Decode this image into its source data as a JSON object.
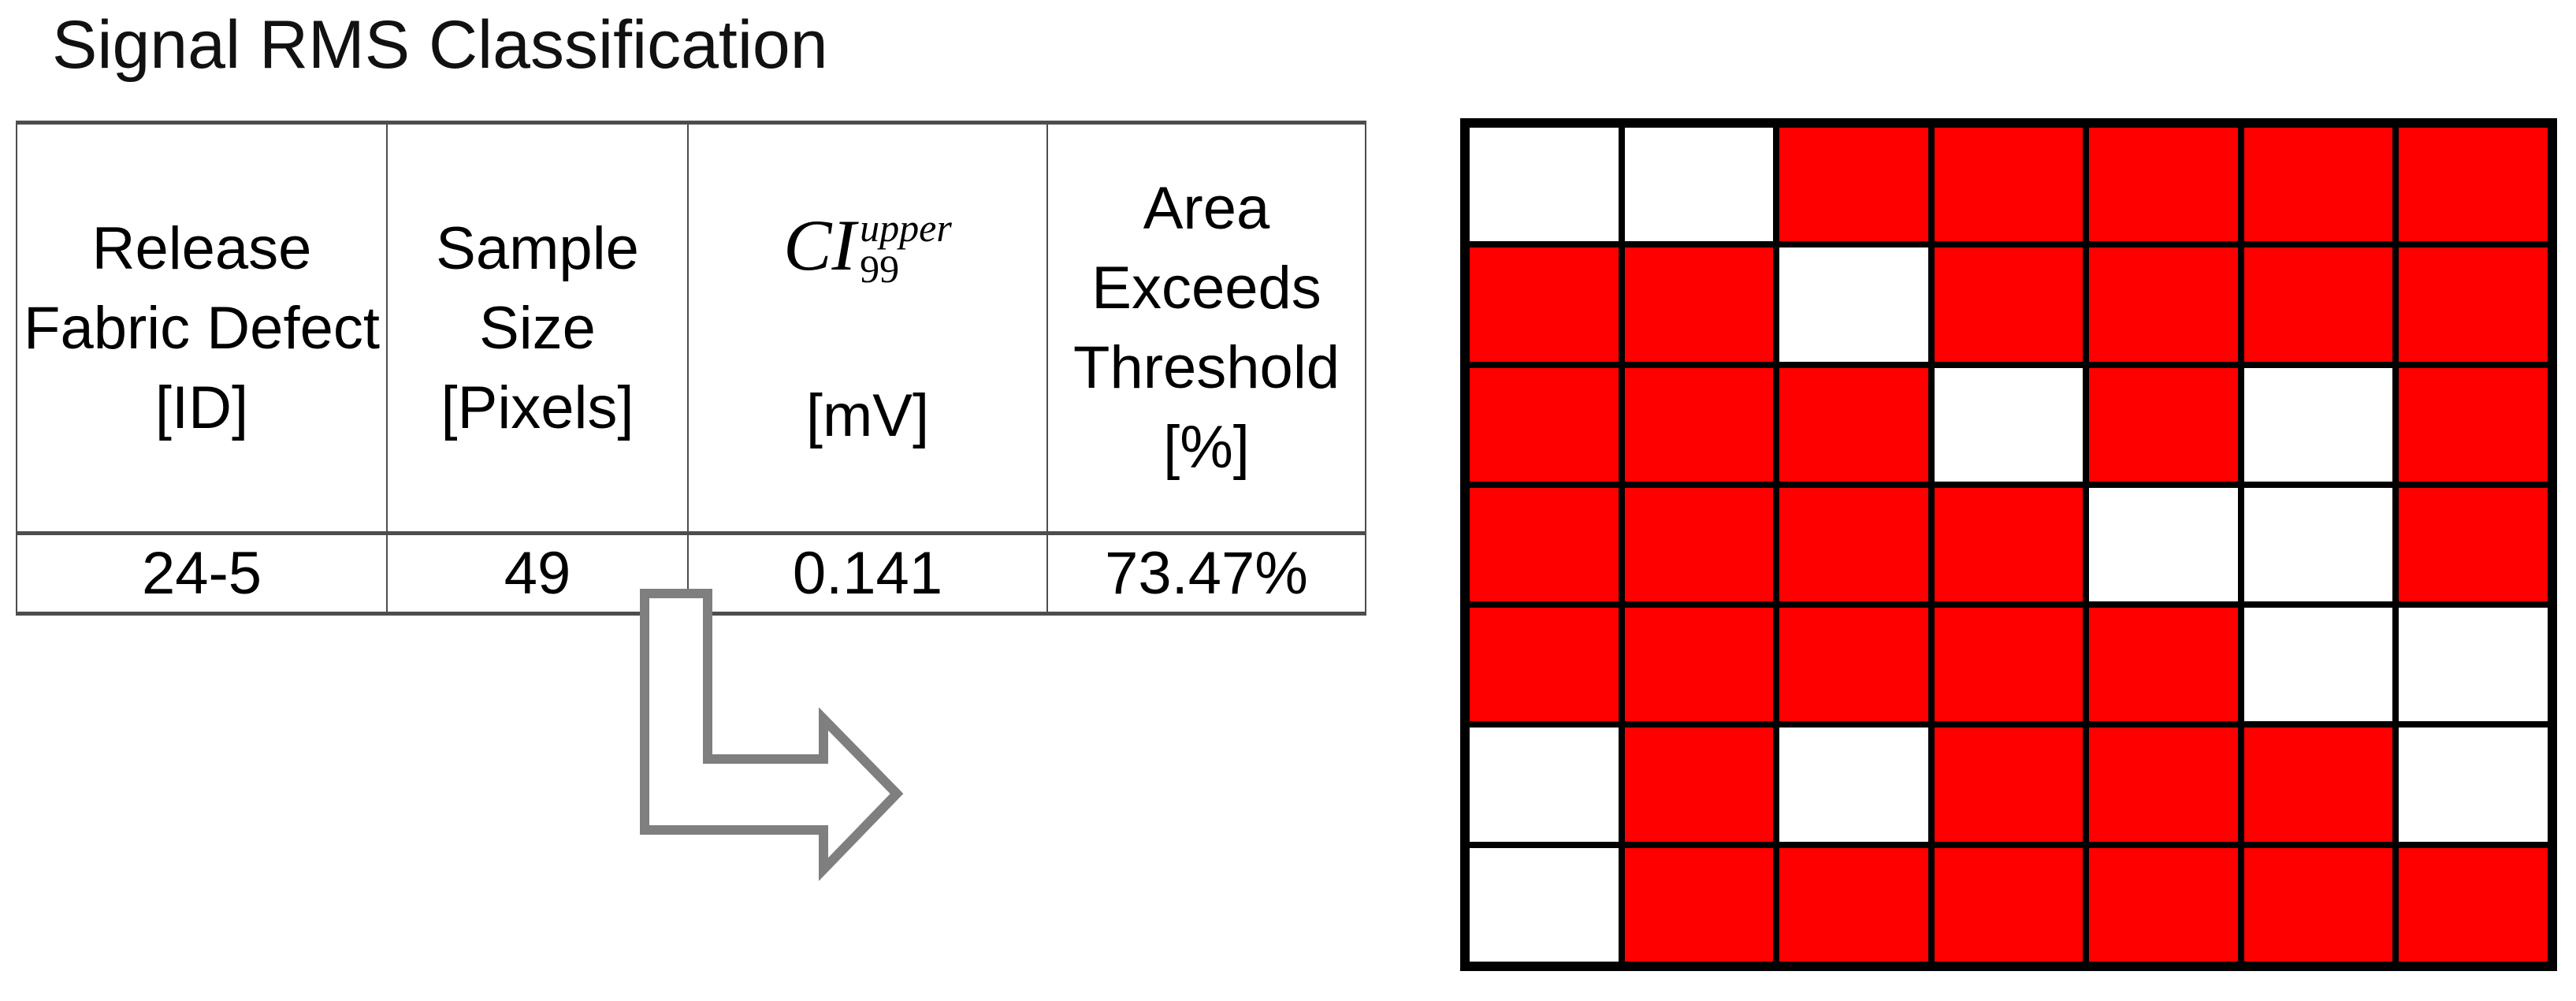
{
  "title": "Signal RMS Classification",
  "table": {
    "headers": {
      "col1": "Release\nFabric Defect\n[ID]",
      "col2": "Sample\nSize\n[Pixels]",
      "col3_math_base": "CI",
      "col3_math_sup": "upper",
      "col3_math_sub": "99",
      "col3_unit": "[mV]",
      "col4": "Area\nExceeds\nThreshold\n[%]"
    },
    "row": {
      "defect_id": "24-5",
      "sample_size": "49",
      "ci_upper_mv": "0.141",
      "area_exceeds_pct": "73.47%"
    }
  },
  "arrow": {
    "type": "bent-arrow-down-then-right",
    "stroke_color": "#7F7F7F",
    "fill_color": "#FFFFFF"
  },
  "grid": {
    "rows": 7,
    "cols": 7,
    "red_color": "#FF0000",
    "white_color": "#FFFFFF",
    "line_color": "#000000",
    "red_count": 36,
    "white_count": 13,
    "cell_states": [
      [
        0,
        0,
        1,
        1,
        1,
        1,
        1
      ],
      [
        1,
        1,
        0,
        1,
        1,
        1,
        1
      ],
      [
        1,
        1,
        1,
        0,
        1,
        0,
        1
      ],
      [
        1,
        1,
        1,
        1,
        0,
        0,
        1
      ],
      [
        1,
        1,
        1,
        1,
        1,
        0,
        0
      ],
      [
        0,
        1,
        0,
        1,
        1,
        1,
        0
      ],
      [
        0,
        1,
        1,
        1,
        1,
        1,
        1
      ]
    ]
  },
  "colors": {
    "table_border": "#4D4D4D",
    "text": "#000000",
    "background": "#FFFFFF"
  }
}
